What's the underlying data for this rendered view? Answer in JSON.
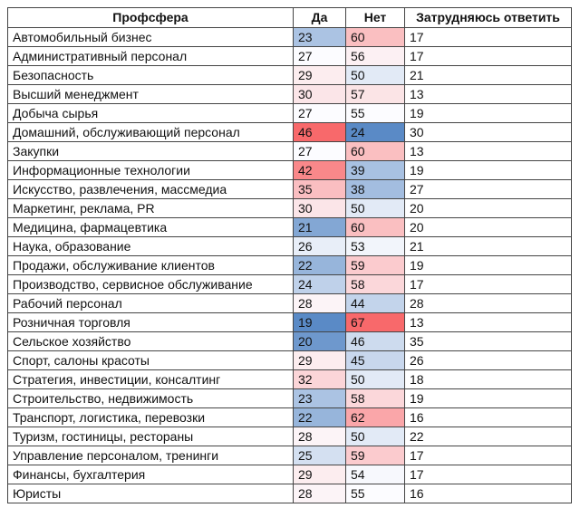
{
  "table": {
    "headers": [
      "Профсфера",
      "Да",
      "Нет",
      "Затрудняюсь ответить"
    ],
    "rows": [
      {
        "sphere": "Автомобильный бизнес",
        "yes": 23,
        "no": 60,
        "hard": 17
      },
      {
        "sphere": "Административный персонал",
        "yes": 27,
        "no": 56,
        "hard": 17
      },
      {
        "sphere": "Безопасность",
        "yes": 29,
        "no": 50,
        "hard": 21
      },
      {
        "sphere": "Высший менеджмент",
        "yes": 30,
        "no": 57,
        "hard": 13
      },
      {
        "sphere": "Добыча сырья",
        "yes": 27,
        "no": 55,
        "hard": 19
      },
      {
        "sphere": "Домашний, обслуживающий персонал",
        "yes": 46,
        "no": 24,
        "hard": 30
      },
      {
        "sphere": "Закупки",
        "yes": 27,
        "no": 60,
        "hard": 13
      },
      {
        "sphere": "Информационные технологии",
        "yes": 42,
        "no": 39,
        "hard": 19
      },
      {
        "sphere": "Искусство, развлечения, массмедиа",
        "yes": 35,
        "no": 38,
        "hard": 27
      },
      {
        "sphere": "Маркетинг, реклама, PR",
        "yes": 30,
        "no": 50,
        "hard": 20
      },
      {
        "sphere": "Медицина, фармацевтика",
        "yes": 21,
        "no": 60,
        "hard": 20
      },
      {
        "sphere": "Наука, образование",
        "yes": 26,
        "no": 53,
        "hard": 21
      },
      {
        "sphere": "Продажи, обслуживание клиентов",
        "yes": 22,
        "no": 59,
        "hard": 19
      },
      {
        "sphere": "Производство, сервисное обслуживание",
        "yes": 24,
        "no": 58,
        "hard": 17
      },
      {
        "sphere": "Рабочий персонал",
        "yes": 28,
        "no": 44,
        "hard": 28
      },
      {
        "sphere": "Розничная торговля",
        "yes": 19,
        "no": 67,
        "hard": 13
      },
      {
        "sphere": "Сельское хозяйство",
        "yes": 20,
        "no": 46,
        "hard": 35
      },
      {
        "sphere": "Спорт, салоны красоты",
        "yes": 29,
        "no": 45,
        "hard": 26
      },
      {
        "sphere": "Стратегия, инвестиции, консалтинг",
        "yes": 32,
        "no": 50,
        "hard": 18
      },
      {
        "sphere": "Строительство, недвижимость",
        "yes": 23,
        "no": 58,
        "hard": 19
      },
      {
        "sphere": "Транспорт, логистика, перевозки",
        "yes": 22,
        "no": 62,
        "hard": 16
      },
      {
        "sphere": "Туризм, гостиницы, рестораны",
        "yes": 28,
        "no": 50,
        "hard": 22
      },
      {
        "sphere": "Управление персоналом, тренинги",
        "yes": 25,
        "no": 59,
        "hard": 17
      },
      {
        "sphere": "Финансы, бухгалтерия",
        "yes": 29,
        "no": 54,
        "hard": 17
      },
      {
        "sphere": "Юристы",
        "yes": 28,
        "no": 55,
        "hard": 16
      }
    ]
  },
  "colors": {
    "high": "#f8696b",
    "mid": "#fcfcff",
    "low": "#5a8ac6",
    "border": "#444444"
  }
}
